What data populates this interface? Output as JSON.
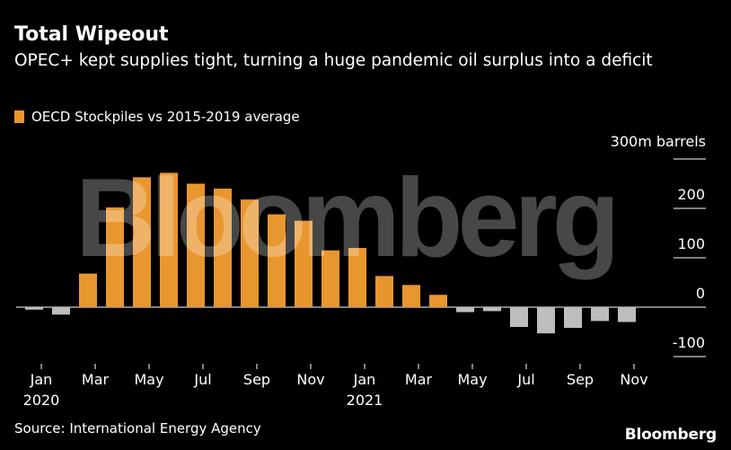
{
  "title": "Total Wipeout",
  "subtitle": "OPEC+ kept supplies tight, turning a huge pandemic oil surplus into a deficit",
  "source": "Source: International Energy Agency",
  "brand": "Bloomberg",
  "watermark": "Bloomberg",
  "colors": {
    "positive": "#E8962E",
    "negative": "#BDBDBD",
    "background": "#000000",
    "text": "#FFFFFF"
  },
  "chart_data": {
    "type": "bar",
    "unit_label": "300m barrels",
    "legend": [
      {
        "label": "OECD Stockpiles vs 2015-2019 average",
        "color": "#E8962E"
      }
    ],
    "categories": [
      "2020-01",
      "2020-02",
      "2020-03",
      "2020-04",
      "2020-05",
      "2020-06",
      "2020-07",
      "2020-08",
      "2020-09",
      "2020-10",
      "2020-11",
      "2020-12",
      "2021-01",
      "2021-02",
      "2021-03",
      "2021-04",
      "2021-05",
      "2021-06",
      "2021-07",
      "2021-08",
      "2021-09",
      "2021-10",
      "2021-11"
    ],
    "values": [
      -5,
      -15,
      68,
      202,
      263,
      272,
      250,
      240,
      218,
      188,
      175,
      115,
      120,
      63,
      45,
      25,
      -10,
      -8,
      -40,
      -53,
      -42,
      -28,
      -30
    ],
    "ylim": [
      -100,
      300
    ],
    "yticks": [
      {
        "value": 300,
        "label": ""
      },
      {
        "value": 200,
        "label": "200"
      },
      {
        "value": 100,
        "label": "100"
      },
      {
        "value": 0,
        "label": "0"
      },
      {
        "value": -100,
        "label": "-100"
      }
    ],
    "xticks": [
      {
        "index": 0,
        "label": "Jan",
        "year": "2020"
      },
      {
        "index": 2,
        "label": "Mar",
        "year": ""
      },
      {
        "index": 4,
        "label": "May",
        "year": ""
      },
      {
        "index": 6,
        "label": "Jul",
        "year": ""
      },
      {
        "index": 8,
        "label": "Sep",
        "year": ""
      },
      {
        "index": 10,
        "label": "Nov",
        "year": ""
      },
      {
        "index": 12,
        "label": "Jan",
        "year": "2021"
      },
      {
        "index": 14,
        "label": "Mar",
        "year": ""
      },
      {
        "index": 16,
        "label": "May",
        "year": ""
      },
      {
        "index": 18,
        "label": "Jul",
        "year": ""
      },
      {
        "index": 20,
        "label": "Sep",
        "year": ""
      },
      {
        "index": 22,
        "label": "Nov",
        "year": ""
      }
    ],
    "grid": true
  }
}
